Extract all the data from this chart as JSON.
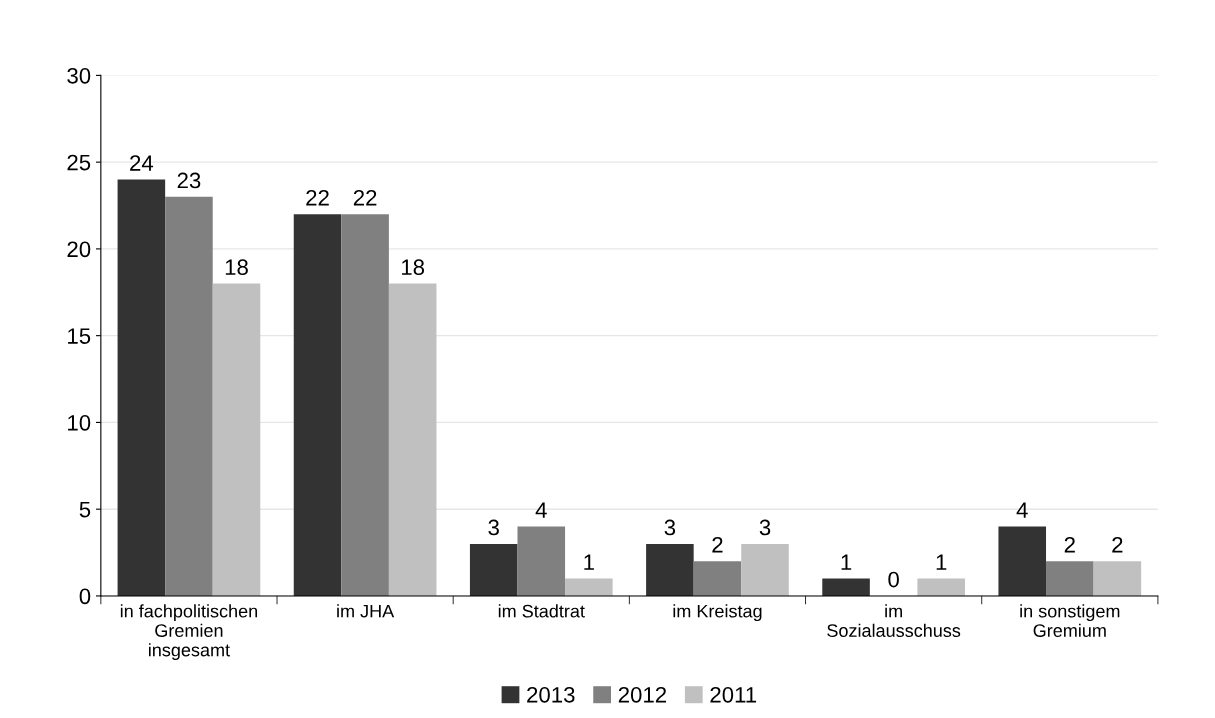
{
  "chart_data": {
    "type": "bar",
    "categories": [
      "in fachpolitischen\nGremien\ninsgesamt",
      "im JHA",
      "im Stadtrat",
      "im Kreistag",
      "im\nSozialausschuss",
      "in sonstigem\nGremium"
    ],
    "series": [
      {
        "name": "2013",
        "color": "#333333",
        "values": [
          24,
          22,
          3,
          3,
          1,
          4
        ]
      },
      {
        "name": "2012",
        "color": "#808080",
        "values": [
          23,
          22,
          4,
          2,
          0,
          2
        ]
      },
      {
        "name": "2011",
        "color": "#c0c0c0",
        "values": [
          18,
          18,
          1,
          3,
          1,
          2
        ]
      }
    ],
    "ylim": [
      0,
      30
    ],
    "yticks": [
      0,
      5,
      10,
      15,
      20,
      25,
      30
    ],
    "grid": "y",
    "legend": "bottom",
    "data_labels": true
  }
}
